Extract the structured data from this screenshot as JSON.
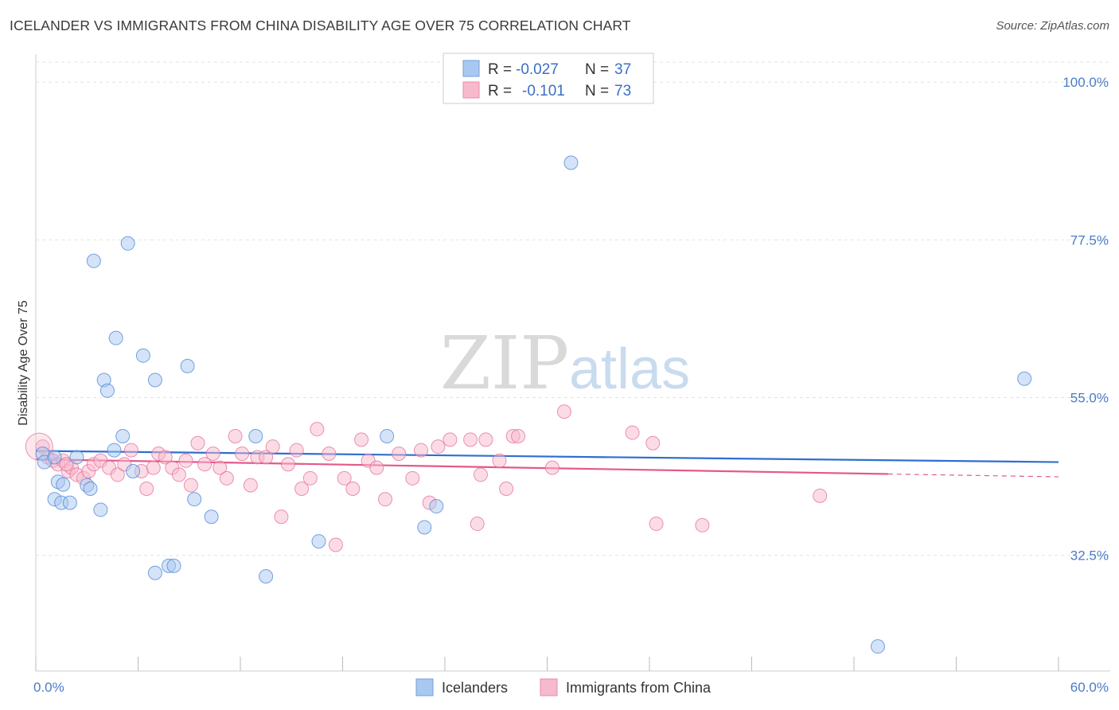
{
  "header": {
    "title": "ICELANDER VS IMMIGRANTS FROM CHINA DISABILITY AGE OVER 75 CORRELATION CHART",
    "source": "Source: ZipAtlas.com"
  },
  "watermark": {
    "zip": "ZIP",
    "atlas": "atlas"
  },
  "legend": {
    "rows": [
      {
        "r_label": "R =",
        "r_value": "-0.027",
        "n_label": "N =",
        "n_value": "37",
        "color": "#a9c8f0"
      },
      {
        "r_label": "R =",
        "r_value": "-0.101",
        "n_label": "N =",
        "n_value": "73",
        "color": "#f7b9cc"
      }
    ]
  },
  "bottom_legend": [
    "Icelanders",
    "Immigrants from China"
  ],
  "chart_data": {
    "type": "scatter",
    "title": "ICELANDER VS IMMIGRANTS FROM CHINA DISABILITY AGE OVER 75 CORRELATION CHART",
    "xlabel": "",
    "ylabel": "Disability Age Over 75",
    "xlim": [
      0,
      60
    ],
    "ylim": [
      16,
      104
    ],
    "x_tick_labels": [
      "0.0%",
      "60.0%"
    ],
    "y_ticks": [
      32.5,
      55.0,
      77.5,
      100.0
    ],
    "y_tick_labels": [
      "32.5%",
      "55.0%",
      "77.5%",
      "100.0%"
    ],
    "grid": true,
    "legend_position": "top-center",
    "series": [
      {
        "name": "Icelanders",
        "color": "#4a86d8",
        "fill": "#a9c8f0",
        "points": [
          [
            0.4,
            47.0
          ],
          [
            0.5,
            45.8
          ],
          [
            1.1,
            46.5
          ],
          [
            1.3,
            43.0
          ],
          [
            1.6,
            42.6
          ],
          [
            1.1,
            40.5
          ],
          [
            1.5,
            40.0
          ],
          [
            2.0,
            40.0
          ],
          [
            2.4,
            46.5
          ],
          [
            3.0,
            42.5
          ],
          [
            3.2,
            42.0
          ],
          [
            3.8,
            39.0
          ],
          [
            3.4,
            74.5
          ],
          [
            4.0,
            57.5
          ],
          [
            4.2,
            56.0
          ],
          [
            4.7,
            63.5
          ],
          [
            5.1,
            49.5
          ],
          [
            4.6,
            47.5
          ],
          [
            5.4,
            77.0
          ],
          [
            5.7,
            44.5
          ],
          [
            6.3,
            61.0
          ],
          [
            7.0,
            57.5
          ],
          [
            7.0,
            30.0
          ],
          [
            7.8,
            31.0
          ],
          [
            8.1,
            31.0
          ],
          [
            8.9,
            59.5
          ],
          [
            9.3,
            40.5
          ],
          [
            10.3,
            38.0
          ],
          [
            12.9,
            49.5
          ],
          [
            13.5,
            29.5
          ],
          [
            16.6,
            34.5
          ],
          [
            20.6,
            49.5
          ],
          [
            22.8,
            36.5
          ],
          [
            23.5,
            39.5
          ],
          [
            31.4,
            88.5
          ],
          [
            49.4,
            19.5
          ],
          [
            58.0,
            57.7
          ]
        ]
      },
      {
        "name": "Immigrants from China",
        "color": "#e66d9b",
        "fill": "#f7b9cc",
        "points": [
          [
            0.4,
            48.0
          ],
          [
            0.7,
            46.5
          ],
          [
            1.0,
            46.0
          ],
          [
            1.3,
            45.5
          ],
          [
            1.6,
            46.0
          ],
          [
            1.9,
            44.5
          ],
          [
            2.1,
            45.0
          ],
          [
            2.4,
            44.0
          ],
          [
            2.8,
            43.5
          ],
          [
            3.1,
            44.5
          ],
          [
            3.4,
            45.5
          ],
          [
            3.8,
            46.0
          ],
          [
            4.3,
            45.0
          ],
          [
            4.8,
            44.0
          ],
          [
            5.2,
            45.5
          ],
          [
            5.6,
            47.5
          ],
          [
            6.2,
            44.5
          ],
          [
            6.5,
            42.0
          ],
          [
            6.9,
            45.0
          ],
          [
            7.2,
            47.0
          ],
          [
            7.6,
            46.5
          ],
          [
            8.0,
            45.0
          ],
          [
            8.4,
            44.0
          ],
          [
            8.8,
            46.0
          ],
          [
            9.1,
            42.5
          ],
          [
            9.5,
            48.5
          ],
          [
            9.9,
            45.5
          ],
          [
            10.4,
            47.0
          ],
          [
            10.8,
            45.0
          ],
          [
            11.2,
            43.5
          ],
          [
            11.7,
            49.5
          ],
          [
            12.1,
            47.0
          ],
          [
            12.6,
            42.5
          ],
          [
            13.0,
            46.5
          ],
          [
            13.5,
            46.5
          ],
          [
            13.9,
            48.0
          ],
          [
            14.4,
            38.0
          ],
          [
            14.8,
            45.5
          ],
          [
            15.3,
            47.5
          ],
          [
            15.6,
            42.0
          ],
          [
            16.1,
            43.5
          ],
          [
            16.5,
            50.5
          ],
          [
            17.2,
            47.0
          ],
          [
            17.6,
            34.0
          ],
          [
            18.1,
            43.5
          ],
          [
            18.6,
            42.0
          ],
          [
            19.1,
            49.0
          ],
          [
            19.5,
            46.0
          ],
          [
            20.0,
            45.0
          ],
          [
            20.5,
            40.5
          ],
          [
            21.3,
            47.0
          ],
          [
            22.1,
            43.5
          ],
          [
            22.6,
            47.5
          ],
          [
            23.1,
            40.0
          ],
          [
            23.6,
            48.0
          ],
          [
            24.3,
            49.0
          ],
          [
            25.5,
            49.0
          ],
          [
            25.9,
            37.0
          ],
          [
            26.1,
            44.0
          ],
          [
            26.4,
            49.0
          ],
          [
            27.2,
            46.0
          ],
          [
            27.6,
            42.0
          ],
          [
            28.0,
            49.5
          ],
          [
            28.3,
            49.5
          ],
          [
            30.3,
            45.0
          ],
          [
            31.0,
            53.0
          ],
          [
            35.0,
            50.0
          ],
          [
            36.2,
            48.5
          ],
          [
            36.4,
            37.0
          ],
          [
            39.1,
            36.8
          ],
          [
            46.0,
            41.0
          ],
          [
            0.2,
            48.0
          ],
          [
            1.8,
            45.5
          ]
        ]
      }
    ],
    "trendlines": [
      {
        "series": "Icelanders",
        "x": [
          0,
          60
        ],
        "y": [
          47.4,
          45.8
        ]
      },
      {
        "series": "Immigrants from China",
        "x": [
          0,
          50,
          60
        ],
        "y": [
          46.2,
          44.1,
          43.7
        ],
        "dashed_from": 50
      }
    ]
  }
}
